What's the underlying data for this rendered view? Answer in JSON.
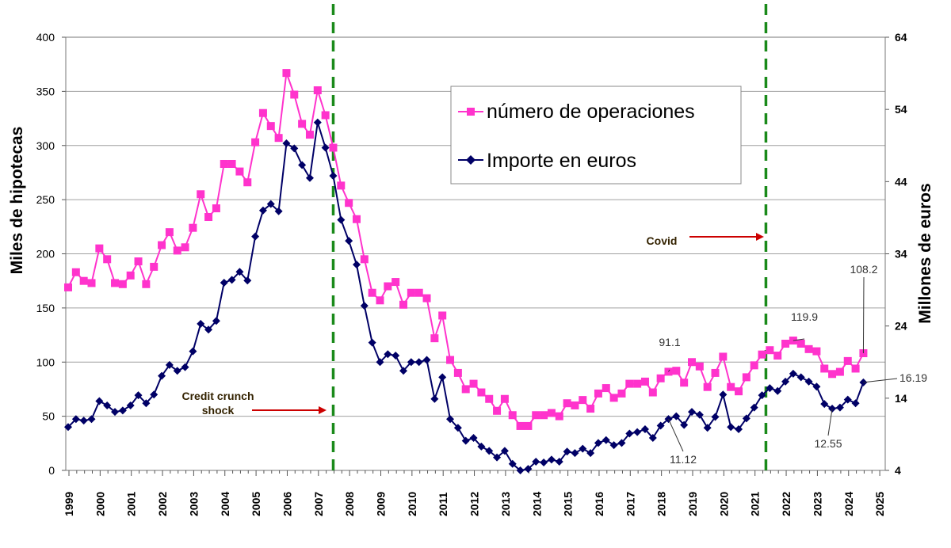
{
  "chart_data": {
    "type": "line",
    "x_range": [
      "1999",
      "2025"
    ],
    "x_ticks": [
      "1999",
      "2000",
      "2001",
      "2002",
      "2003",
      "2004",
      "2005",
      "2006",
      "2007",
      "2008",
      "2009",
      "2010",
      "2011",
      "2012",
      "2013",
      "2014",
      "2015",
      "2016",
      "2017",
      "2018",
      "2019",
      "2020",
      "2021",
      "2022",
      "2023",
      "2024",
      "2025"
    ],
    "frequency": "quarterly, 1999 Q1 – 2024 Q3",
    "ylabel_left": "Miles de hipotecas",
    "ylim_left": [
      0,
      400
    ],
    "yticks_left": [
      0,
      50,
      100,
      150,
      200,
      250,
      300,
      350,
      400
    ],
    "ylabel_right": "Millones de euros",
    "ylim_right": [
      4,
      64
    ],
    "yticks_right": [
      4,
      14,
      24,
      34,
      44,
      54,
      64
    ],
    "grid": true,
    "legend_position": "top-center",
    "series": [
      {
        "name": "número de operaciones",
        "axis": "left",
        "color": "#ff33cc",
        "marker": "square",
        "values": [
          169,
          183,
          175,
          173,
          205,
          195,
          173,
          172,
          180,
          193,
          172,
          188,
          208,
          220,
          203,
          206,
          224,
          255,
          234,
          242,
          283,
          283,
          276,
          266,
          303,
          330,
          318,
          307,
          367,
          347,
          320,
          310,
          351,
          328,
          298,
          263,
          247,
          232,
          195,
          164,
          157,
          170,
          174,
          153,
          164,
          164,
          159,
          122,
          143,
          102,
          90,
          75,
          80,
          72,
          66,
          55,
          66,
          51,
          41,
          41,
          51,
          51,
          53,
          50,
          62,
          60,
          65,
          57,
          71,
          76,
          67,
          71,
          80,
          80,
          82,
          72,
          85,
          91.1,
          92,
          81,
          100,
          96,
          77,
          90,
          105,
          77,
          73,
          86,
          97,
          107,
          111,
          106,
          117,
          119.9,
          117,
          112,
          110,
          94,
          89,
          91,
          101,
          94,
          108.2
        ]
      },
      {
        "name": "Importe en euros",
        "axis": "right",
        "color": "#000066",
        "marker": "diamond",
        "values": [
          10.0,
          11.1,
          10.9,
          11.1,
          13.6,
          13.0,
          12.1,
          12.3,
          13.0,
          14.4,
          13.3,
          14.5,
          17.1,
          18.6,
          17.8,
          18.3,
          20.5,
          24.3,
          23.5,
          24.7,
          30.0,
          30.4,
          31.5,
          30.3,
          36.4,
          40.0,
          40.9,
          39.9,
          49.3,
          48.6,
          46.3,
          44.5,
          52.2,
          48.7,
          44.8,
          38.7,
          35.8,
          32.5,
          26.8,
          21.7,
          19.0,
          20.1,
          19.9,
          17.8,
          19.0,
          19.0,
          19.3,
          13.9,
          16.9,
          11.1,
          9.9,
          8.1,
          8.5,
          7.3,
          6.7,
          5.8,
          6.7,
          4.9,
          4.0,
          4.2,
          5.2,
          5.1,
          5.5,
          5.2,
          6.6,
          6.4,
          7.0,
          6.4,
          7.8,
          8.2,
          7.5,
          7.8,
          9.1,
          9.3,
          9.7,
          8.5,
          10.2,
          11.12,
          11.5,
          10.3,
          12.1,
          11.7,
          9.9,
          11.4,
          14.5,
          10.0,
          9.7,
          11.2,
          12.7,
          14.4,
          15.4,
          15.0,
          16.3,
          17.4,
          16.9,
          16.3,
          15.6,
          13.2,
          12.55,
          12.7,
          13.8,
          13.3,
          16.19
        ]
      }
    ],
    "annotations": [
      {
        "text": "Credit crunch shock",
        "x": "2007 Q3",
        "marker": "dashed vertical line, red arrow"
      },
      {
        "text": "Covid",
        "x": "2021 Q2",
        "marker": "dashed vertical line, red arrow"
      }
    ],
    "data_labels": [
      {
        "series": "número de operaciones",
        "point": "2018 Q2",
        "text": "91.1"
      },
      {
        "series": "número de operaciones",
        "point": "2022 Q2",
        "text": "119.9"
      },
      {
        "series": "número de operaciones",
        "point": "2024 Q3",
        "text": "108.2"
      },
      {
        "series": "Importe en euros",
        "point": "2018 Q2",
        "text": "11.12"
      },
      {
        "series": "Importe en euros",
        "point": "2023 Q3",
        "text": "12.55"
      },
      {
        "series": "Importe en euros",
        "point": "2024 Q3",
        "text": "16.19"
      }
    ],
    "colors": {
      "vline": "#1a8a1a",
      "arrow": "#cc0000",
      "grid": "#a0a0a0"
    }
  }
}
